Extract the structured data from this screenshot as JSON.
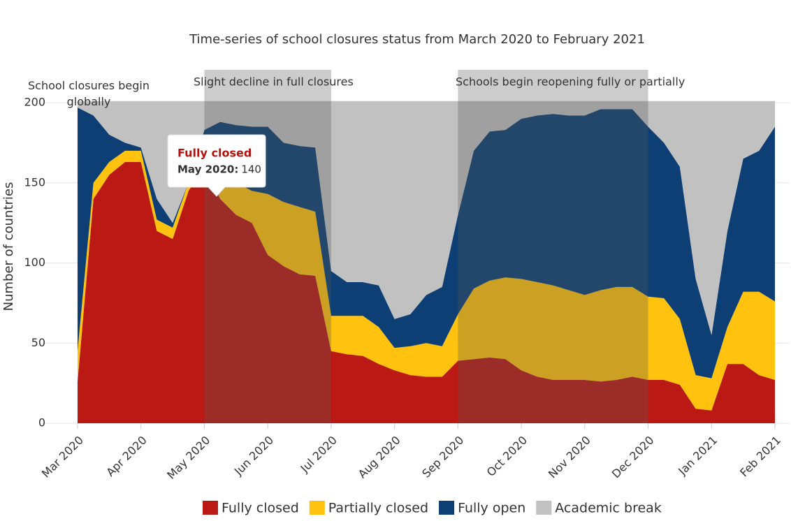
{
  "chart_data": {
    "type": "stacked_area",
    "title": "Time-series of school closures status from March 2020 to February 2021",
    "ylabel": "Number of countries",
    "categories": [
      "Mar 2020",
      null,
      null,
      null,
      "Apr 2020",
      null,
      null,
      null,
      "May 2020",
      null,
      null,
      null,
      "Jun 2020",
      null,
      null,
      null,
      "Jul 2020",
      null,
      null,
      null,
      "Aug 2020",
      null,
      null,
      null,
      "Sep 2020",
      null,
      null,
      null,
      "Oct 2020",
      null,
      null,
      null,
      "Nov 2020",
      null,
      null,
      null,
      "Dec 2020",
      null,
      null,
      null,
      "Jan 2021",
      null,
      null,
      null,
      "Feb 2021"
    ],
    "series": [
      {
        "name": "Fully closed",
        "color": "#bb1a14",
        "values": [
          26,
          140,
          155,
          163,
          163,
          120,
          115,
          145,
          160,
          140,
          130,
          125,
          105,
          98,
          93,
          92,
          45,
          43,
          42,
          37,
          33,
          30,
          29,
          29,
          39,
          40,
          41,
          40,
          33,
          29,
          27,
          27,
          27,
          26,
          27,
          29,
          27,
          27,
          24,
          9,
          8,
          37,
          37,
          30,
          27
        ]
      },
      {
        "name": "Partially closed",
        "color": "#ffc20e",
        "values": [
          19,
          10,
          8,
          7,
          7,
          7,
          7,
          5,
          8,
          20,
          20,
          20,
          38,
          40,
          42,
          40,
          22,
          24,
          25,
          23,
          14,
          18,
          21,
          19,
          29,
          44,
          48,
          51,
          57,
          59,
          59,
          56,
          53,
          57,
          58,
          56,
          52,
          51,
          41,
          21,
          20,
          23,
          45,
          52,
          49
        ]
      },
      {
        "name": "Fully open",
        "color": "#0d3f74",
        "values": [
          152,
          42,
          17,
          5,
          2,
          13,
          3,
          0,
          15,
          28,
          36,
          40,
          42,
          37,
          38,
          40,
          28,
          21,
          21,
          26,
          18,
          20,
          30,
          37,
          62,
          86,
          93,
          92,
          100,
          104,
          107,
          109,
          112,
          113,
          111,
          111,
          106,
          97,
          95,
          60,
          27,
          60,
          83,
          88,
          109
        ]
      },
      {
        "name": "Academic break",
        "color": "#c1c1c1",
        "values": [
          4,
          9,
          21,
          26,
          29,
          61,
          76,
          51,
          18,
          13,
          15,
          16,
          16,
          26,
          28,
          29,
          106,
          113,
          113,
          115,
          136,
          133,
          121,
          116,
          71,
          31,
          19,
          18,
          11,
          9,
          8,
          9,
          9,
          5,
          5,
          5,
          16,
          26,
          41,
          111,
          146,
          81,
          36,
          31,
          16
        ]
      }
    ],
    "ylim": [
      0,
      200
    ],
    "yticks": [
      0,
      50,
      100,
      150,
      200
    ],
    "grid": true,
    "legend": "bottom",
    "annotations": [
      {
        "text": "School closures begin globally",
        "from": "Mar 2020",
        "to": "Mar 2020"
      },
      {
        "text": "Slight decline in full closures",
        "from": "May 2020",
        "to": "Jul 2020"
      },
      {
        "text": "Schools begin reopening fully or partially",
        "from": "Sep 2020",
        "to": "Dec 2020"
      }
    ],
    "tooltip": {
      "series": "Fully closed",
      "label": "May 2020:",
      "value": 140
    }
  }
}
